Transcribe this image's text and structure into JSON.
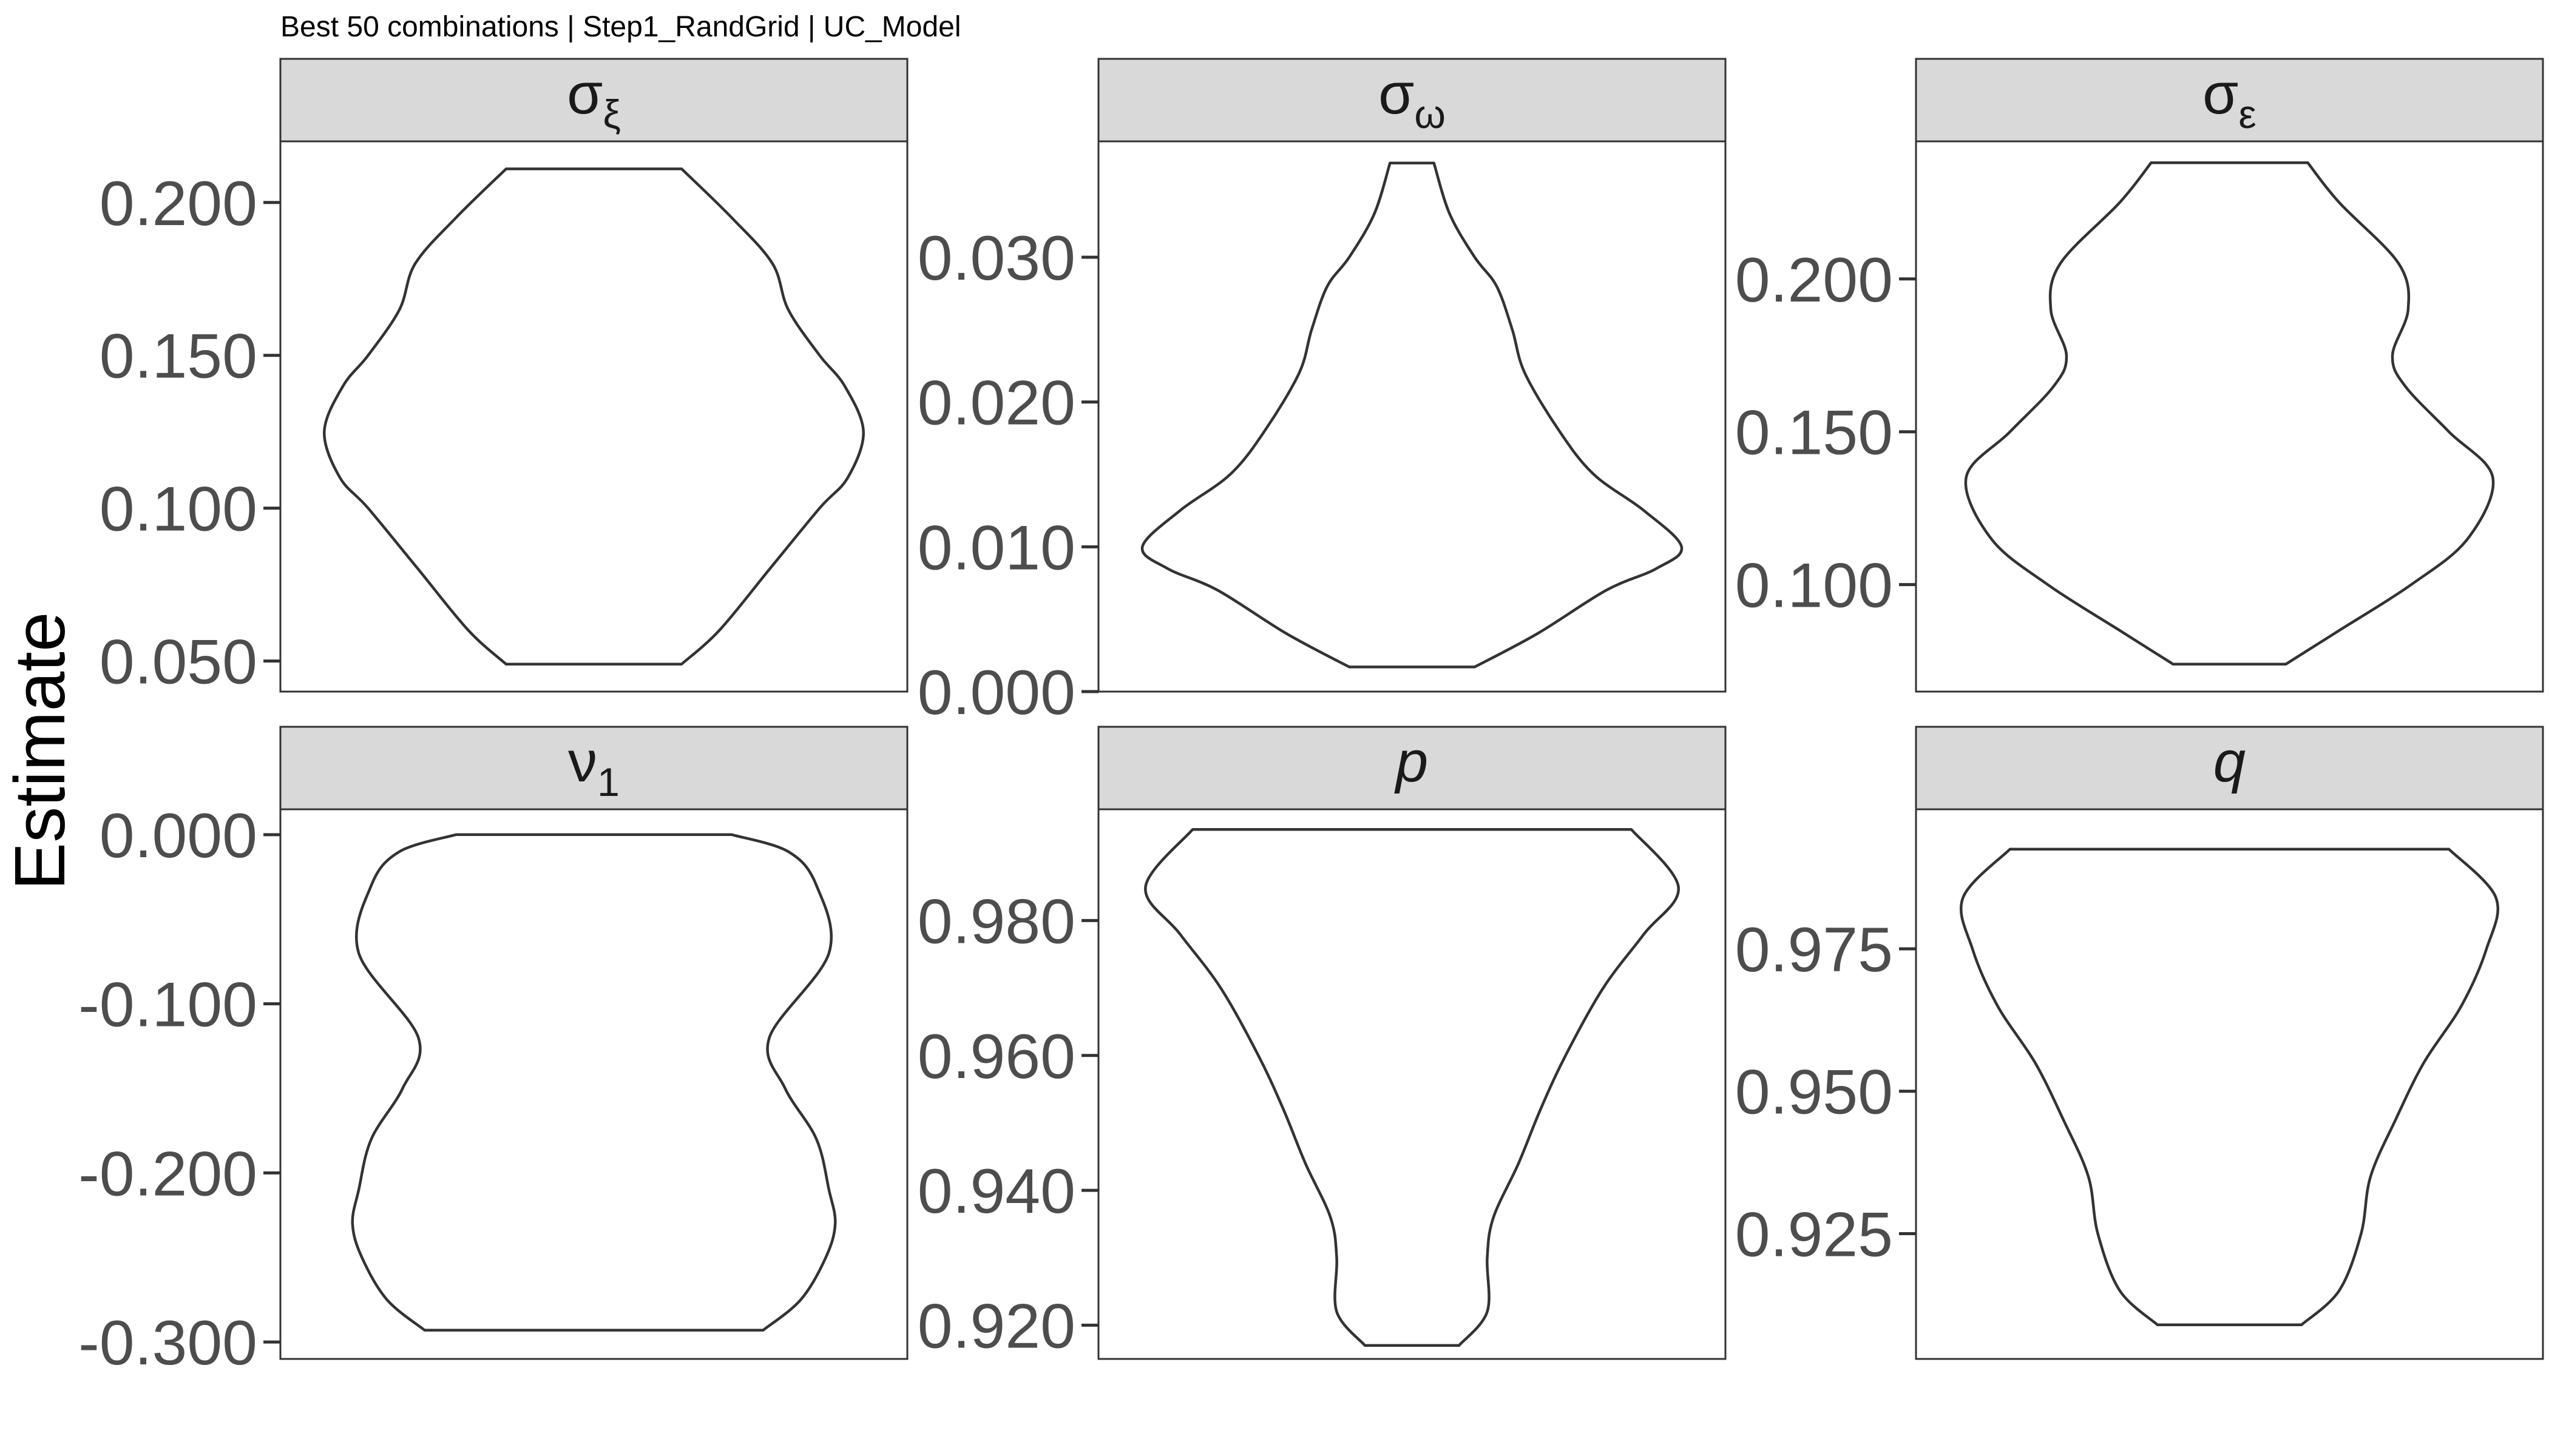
{
  "subtitle": "Best 50 combinations | Step1_RandGrid | UC_Model",
  "chart_data": {
    "type": "violin",
    "ylabel": "Estimate",
    "grid": false,
    "panels": [
      {
        "strip": {
          "base": "σ",
          "sub": "ξ",
          "italic": false
        },
        "ylim": [
          0.04,
          0.22
        ],
        "ticks": [
          0.05,
          0.1,
          0.15,
          0.2
        ],
        "tick_labels": [
          "0.050",
          "0.100",
          "0.150",
          "0.200"
        ],
        "density": [
          [
            0.049,
            0.28
          ],
          [
            0.06,
            0.4
          ],
          [
            0.08,
            0.56
          ],
          [
            0.1,
            0.72
          ],
          [
            0.11,
            0.81
          ],
          [
            0.125,
            0.86
          ],
          [
            0.14,
            0.8
          ],
          [
            0.15,
            0.72
          ],
          [
            0.165,
            0.62
          ],
          [
            0.18,
            0.57
          ],
          [
            0.195,
            0.44
          ],
          [
            0.211,
            0.28
          ]
        ]
      },
      {
        "strip": {
          "base": "σ",
          "sub": "ω",
          "italic": false
        },
        "ylim": [
          0.0,
          0.038
        ],
        "ticks": [
          0.0,
          0.01,
          0.02,
          0.03
        ],
        "tick_labels": [
          "0.000",
          "0.010",
          "0.020",
          "0.030"
        ],
        "density": [
          [
            0.0017,
            0.2
          ],
          [
            0.004,
            0.4
          ],
          [
            0.007,
            0.62
          ],
          [
            0.0085,
            0.78
          ],
          [
            0.01,
            0.86
          ],
          [
            0.0125,
            0.74
          ],
          [
            0.015,
            0.58
          ],
          [
            0.018,
            0.47
          ],
          [
            0.022,
            0.36
          ],
          [
            0.025,
            0.32
          ],
          [
            0.028,
            0.27
          ],
          [
            0.03,
            0.2
          ],
          [
            0.033,
            0.12
          ],
          [
            0.0365,
            0.07
          ]
        ]
      },
      {
        "strip": {
          "base": "σ",
          "sub": "ε",
          "italic": false
        },
        "ylim": [
          0.065,
          0.245
        ],
        "ticks": [
          0.1,
          0.15,
          0.2
        ],
        "tick_labels": [
          "0.100",
          "0.150",
          "0.200"
        ],
        "density": [
          [
            0.074,
            0.18
          ],
          [
            0.085,
            0.35
          ],
          [
            0.1,
            0.58
          ],
          [
            0.115,
            0.76
          ],
          [
            0.135,
            0.84
          ],
          [
            0.15,
            0.7
          ],
          [
            0.165,
            0.56
          ],
          [
            0.175,
            0.52
          ],
          [
            0.19,
            0.57
          ],
          [
            0.205,
            0.54
          ],
          [
            0.225,
            0.35
          ],
          [
            0.238,
            0.25
          ]
        ]
      },
      {
        "strip": {
          "base": "ν",
          "sub": "1",
          "italic": false
        },
        "ylim": [
          -0.31,
          0.015
        ],
        "ticks": [
          0.0,
          -0.1,
          -0.2,
          -0.3
        ],
        "tick_labels": [
          "0.000",
          "-0.100",
          "-0.200",
          "-0.300"
        ],
        "density": [
          [
            -0.293,
            0.54
          ],
          [
            -0.275,
            0.66
          ],
          [
            -0.25,
            0.74
          ],
          [
            -0.23,
            0.77
          ],
          [
            -0.21,
            0.75
          ],
          [
            -0.18,
            0.71
          ],
          [
            -0.15,
            0.61
          ],
          [
            -0.12,
            0.56
          ],
          [
            -0.07,
            0.75
          ],
          [
            -0.03,
            0.71
          ],
          [
            -0.01,
            0.62
          ],
          [
            0.0,
            0.44
          ]
        ]
      },
      {
        "strip": {
          "base": "p",
          "sub": "",
          "italic": true
        },
        "ylim": [
          0.915,
          0.9965
        ],
        "ticks": [
          0.92,
          0.94,
          0.96,
          0.98
        ],
        "tick_labels": [
          "0.920",
          "0.940",
          "0.960",
          "0.980"
        ],
        "density": [
          [
            0.917,
            0.15
          ],
          [
            0.922,
            0.24
          ],
          [
            0.93,
            0.24
          ],
          [
            0.936,
            0.26
          ],
          [
            0.944,
            0.34
          ],
          [
            0.952,
            0.41
          ],
          [
            0.96,
            0.49
          ],
          [
            0.97,
            0.61
          ],
          [
            0.978,
            0.74
          ],
          [
            0.985,
            0.85
          ],
          [
            0.9935,
            0.7
          ]
        ]
      },
      {
        "strip": {
          "base": "q",
          "sub": "",
          "italic": true
        },
        "ylim": [
          0.903,
          0.9995
        ],
        "ticks": [
          0.925,
          0.95,
          0.975
        ],
        "tick_labels": [
          "0.925",
          "0.950",
          "0.975"
        ],
        "density": [
          [
            0.909,
            0.23
          ],
          [
            0.915,
            0.35
          ],
          [
            0.925,
            0.42
          ],
          [
            0.935,
            0.45
          ],
          [
            0.945,
            0.53
          ],
          [
            0.955,
            0.62
          ],
          [
            0.965,
            0.74
          ],
          [
            0.975,
            0.82
          ],
          [
            0.984,
            0.85
          ],
          [
            0.9925,
            0.7
          ]
        ]
      }
    ]
  }
}
